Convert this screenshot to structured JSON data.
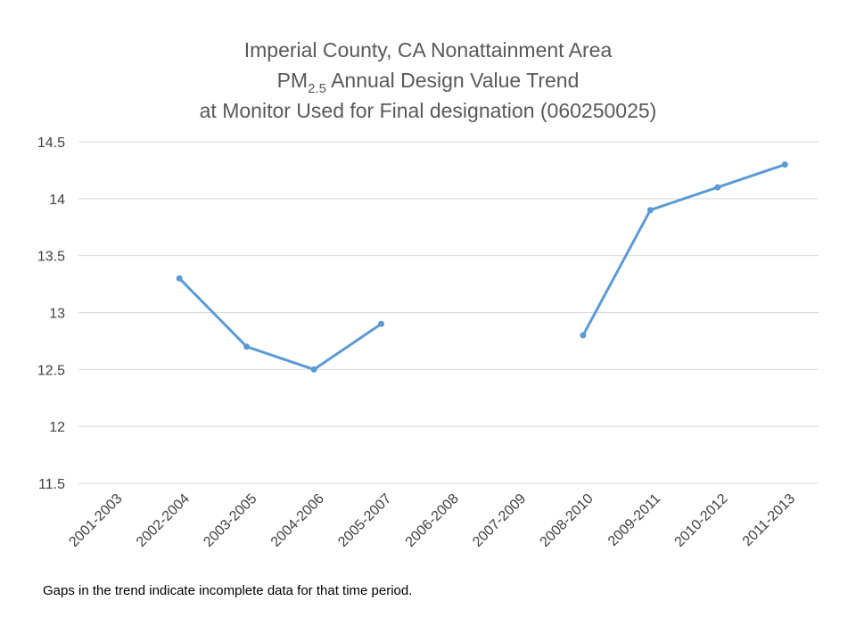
{
  "chart_data": {
    "type": "line",
    "title": {
      "line1": "Imperial County, CA Nonattainment Area",
      "line2_prefix": "PM",
      "line2_sub": "2.5",
      "line2_suffix": " Annual Design Value Trend",
      "line3": "at Monitor Used for Final designation (060250025)"
    },
    "categories": [
      "2001-2003",
      "2002-2004",
      "2003-2005",
      "2004-2006",
      "2005-2007",
      "2006-2008",
      "2007-2009",
      "2008-2010",
      "2009-2011",
      "2010-2012",
      "2011-2013"
    ],
    "series": [
      {
        "values": [
          null,
          13.3,
          12.7,
          12.5,
          12.9,
          null,
          null,
          12.8,
          13.9,
          14.1,
          14.3
        ]
      }
    ],
    "yticks": [
      "11.5",
      "12",
      "12.5",
      "13",
      "13.5",
      "14",
      "14.5"
    ],
    "ylim": [
      11.5,
      14.5
    ],
    "grid": true,
    "line_color": "#5B9BD5",
    "grid_color": "#D9D9D9"
  },
  "footnote": "Gaps in the trend indicate incomplete data for that time period."
}
